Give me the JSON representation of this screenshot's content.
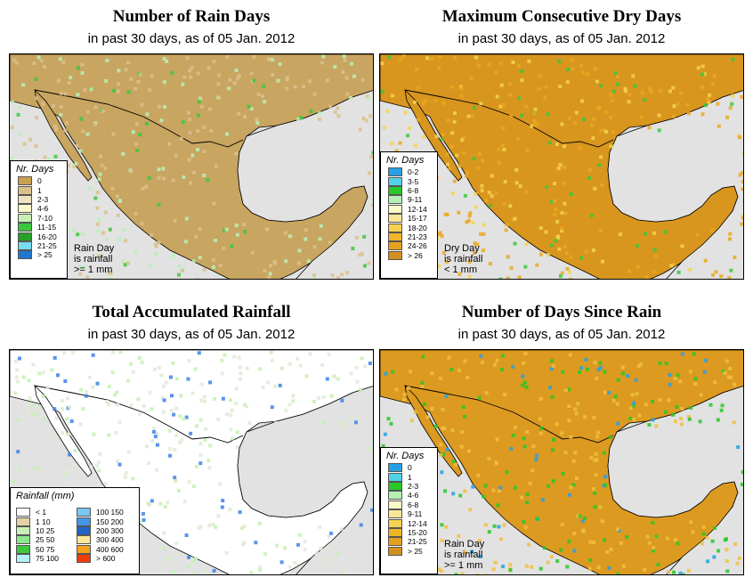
{
  "panels": {
    "rain_days": {
      "title": "Number of Rain Days",
      "subtitle": "in past 30 days, as of  05 Jan. 2012",
      "legend_title": "Nr. Days",
      "legend": [
        {
          "label": "0",
          "color": "#c8a04e"
        },
        {
          "label": "1",
          "color": "#dcc08c"
        },
        {
          "label": "2-3",
          "color": "#f0e2c0"
        },
        {
          "label": "4-6",
          "color": "#fafac8"
        },
        {
          "label": "7-10",
          "color": "#c8f0b4"
        },
        {
          "label": "11-15",
          "color": "#3cc83c"
        },
        {
          "label": "16-20",
          "color": "#28a028"
        },
        {
          "label": "21-25",
          "color": "#78dcf0"
        },
        {
          "label": "> 25",
          "color": "#1e78d2"
        }
      ],
      "note": [
        "Rain Day",
        "is rainfall",
        ">= 1 mm"
      ],
      "palette": {
        "land": "#c8a560",
        "land2": "#dcc08c",
        "accent": "#b8f0b8",
        "accent2": "#3cc83c"
      }
    },
    "dry_days": {
      "title": "Maximum Consecutive Dry Days",
      "subtitle": "in past 30 days, as of  05 Jan. 2012",
      "legend_title": "Nr. Days",
      "legend": [
        {
          "label": "0-2",
          "color": "#28a0e6"
        },
        {
          "label": "3-5",
          "color": "#50d2e6"
        },
        {
          "label": "6-8",
          "color": "#28c828"
        },
        {
          "label": "9-11",
          "color": "#b4f0b4"
        },
        {
          "label": "12-14",
          "color": "#fafac8"
        },
        {
          "label": "15-17",
          "color": "#fae696"
        },
        {
          "label": "18-20",
          "color": "#f5d250"
        },
        {
          "label": "21-23",
          "color": "#f0b428"
        },
        {
          "label": "24-26",
          "color": "#e6a01e"
        },
        {
          "label": "> 26",
          "color": "#d2911e"
        }
      ],
      "note": [
        "Dry Day",
        "is rainfall",
        "< 1 mm"
      ],
      "palette": {
        "land": "#d8961e",
        "land2": "#eaa820",
        "accent": "#f5d250",
        "accent2": "#3cc83c"
      }
    },
    "total_rain": {
      "title": "Total Accumulated Rainfall",
      "subtitle": "in past 30 days, as of  05 Jan. 2012",
      "legend_title": "Rainfall (mm)",
      "legend_col1": [
        {
          "label": "< 1",
          "color": "#ffffff"
        },
        {
          "label": "1   10",
          "color": "#e6d2a8"
        },
        {
          "label": "10   25",
          "color": "#c8f0b4"
        },
        {
          "label": "25   50",
          "color": "#8ce68c"
        },
        {
          "label": "50   75",
          "color": "#3cc83c"
        },
        {
          "label": "75   100",
          "color": "#b4f0f5"
        }
      ],
      "legend_col2": [
        {
          "label": "100   150",
          "color": "#78c8f0"
        },
        {
          "label": "150   200",
          "color": "#4696e6"
        },
        {
          "label": "200   300",
          "color": "#1e64c8"
        },
        {
          "label": "300   400",
          "color": "#fae696"
        },
        {
          "label": "400   600",
          "color": "#f5a01e"
        },
        {
          "label": "> 600",
          "color": "#f03c0a"
        }
      ],
      "palette": {
        "land": "#ffffff",
        "land2": "#e0ead6",
        "accent": "#c8f0b4",
        "accent2": "#3c82e6"
      }
    },
    "days_since": {
      "title": "Number of Days Since Rain",
      "subtitle": "in past 30 days, as of  05 Jan. 2012",
      "legend_title": "Nr. Days",
      "legend": [
        {
          "label": "0",
          "color": "#28a0e6"
        },
        {
          "label": "1",
          "color": "#50d2e6"
        },
        {
          "label": "2-3",
          "color": "#28c828"
        },
        {
          "label": "4-6",
          "color": "#b4f0b4"
        },
        {
          "label": "6-8",
          "color": "#fafac8"
        },
        {
          "label": "9-11",
          "color": "#fae696"
        },
        {
          "label": "12-14",
          "color": "#f5d250"
        },
        {
          "label": "15-20",
          "color": "#f0b428"
        },
        {
          "label": "21-25",
          "color": "#e6a01e"
        },
        {
          "label": "> 25",
          "color": "#d2911e"
        }
      ],
      "note": [
        "Rain Day",
        "is rainfall",
        ">= 1 mm"
      ],
      "palette": {
        "land": "#dc9a20",
        "land2": "#f0c040",
        "accent": "#28c828",
        "accent2": "#28a0e6"
      }
    }
  }
}
